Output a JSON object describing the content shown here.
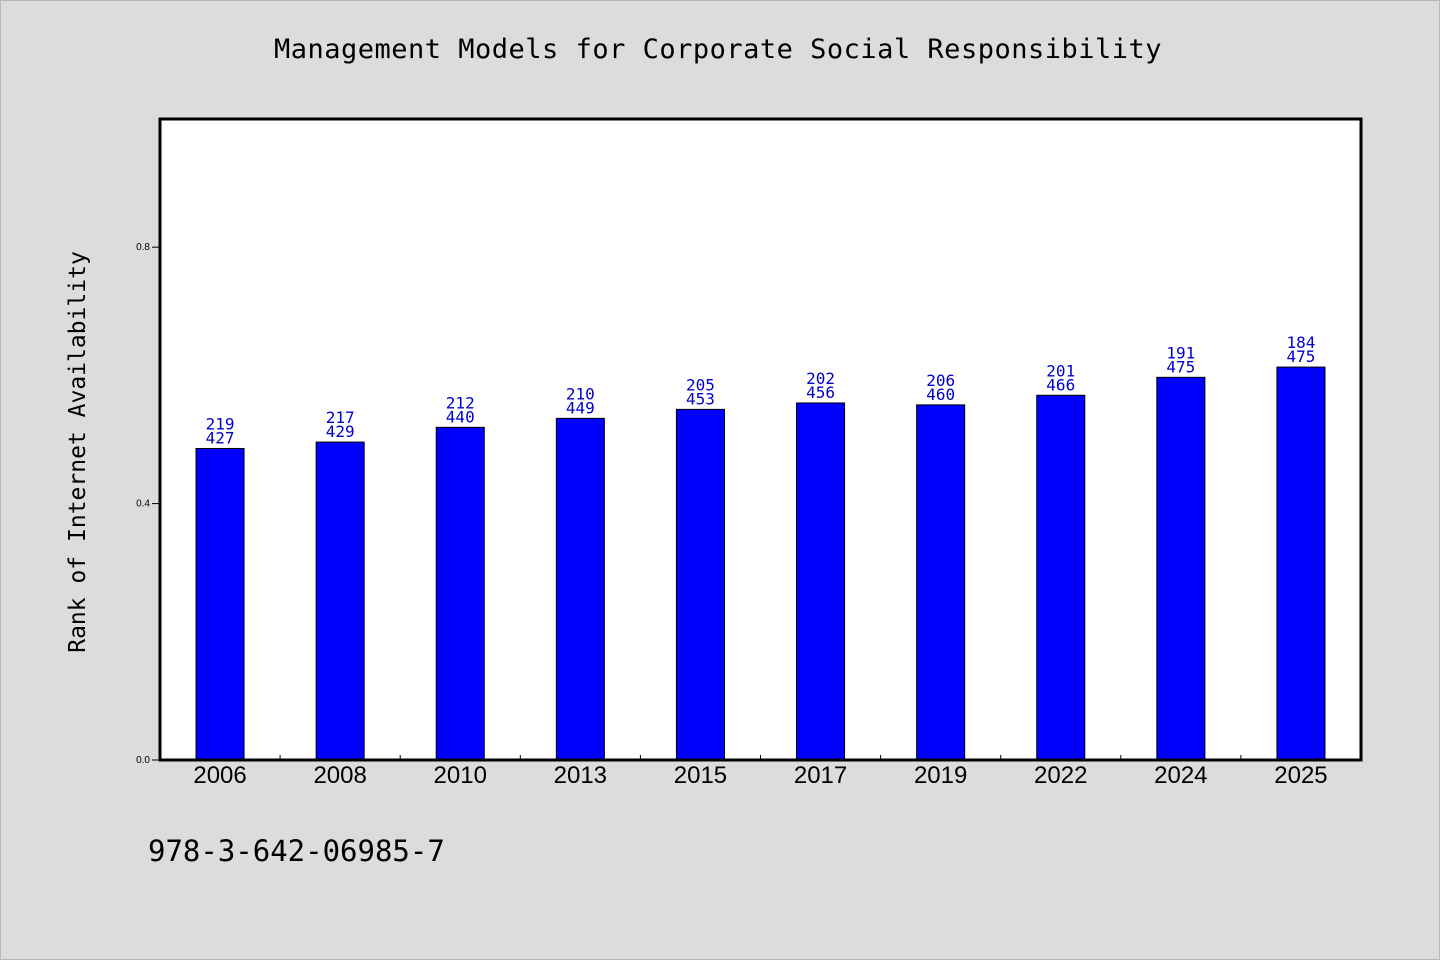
{
  "chart_data": {
    "type": "bar",
    "title": "Management Models for Corporate Social Responsibility",
    "xlabel": "",
    "ylabel": "Rank of Internet Availability",
    "categories": [
      "2006",
      "2008",
      "2010",
      "2013",
      "2015",
      "2017",
      "2019",
      "2022",
      "2024",
      "2025"
    ],
    "series": [
      {
        "values": [
          0.486,
          0.496,
          0.519,
          0.533,
          0.547,
          0.557,
          0.554,
          0.569,
          0.597,
          0.613
        ]
      }
    ],
    "data_labels": [
      [
        "219",
        "427"
      ],
      [
        "217",
        "429"
      ],
      [
        "212",
        "440"
      ],
      [
        "210",
        "449"
      ],
      [
        "205",
        "453"
      ],
      [
        "202",
        "456"
      ],
      [
        "206",
        "460"
      ],
      [
        "201",
        "466"
      ],
      [
        "191",
        "475"
      ],
      [
        "184",
        "475"
      ]
    ],
    "ylim": [
      0,
      1.0
    ],
    "yticks": [
      "0.0",
      "0.4",
      "0.8"
    ],
    "grid": false,
    "bar_color": "#0000ff",
    "label_color": "#0000cc"
  },
  "annotation": {
    "isbn": "978-3-642-06985-7"
  }
}
